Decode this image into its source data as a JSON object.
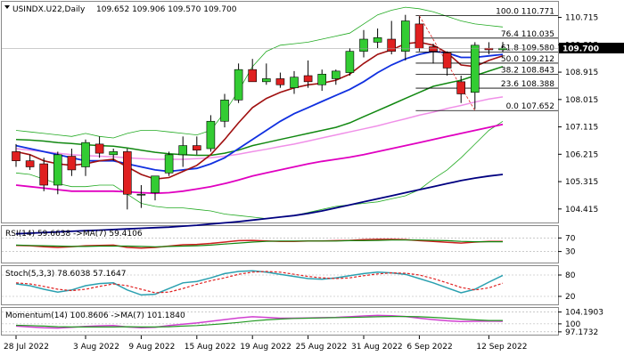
{
  "header": {
    "symbol": "USINDX.U22,Daily",
    "ohlc": "109.652 109.906 109.570 109.700"
  },
  "price_tag": "109.700",
  "chart_data": [
    {
      "type": "candlestick",
      "name": "main",
      "ylim": [
        104.0,
        111.2
      ],
      "y_ticks": [
        "110.715",
        "109.815",
        "108.915",
        "108.015",
        "107.115",
        "106.215",
        "105.315",
        "104.415"
      ],
      "x_ticks": [
        "28 Jul 2022",
        "3 Aug 2022",
        "9 Aug 2022",
        "15 Aug 2022",
        "19 Aug 2022",
        "25 Aug 2022",
        "31 Aug 2022",
        "6 Sep 2022",
        "12 Sep 2022"
      ],
      "x_tick_index": [
        0,
        5,
        9,
        13,
        17,
        21,
        25,
        29,
        34
      ],
      "candles": [
        {
          "o": 106.3,
          "h": 106.55,
          "l": 105.8,
          "c": 106.0
        },
        {
          "o": 106.0,
          "h": 106.2,
          "l": 105.7,
          "c": 105.8
        },
        {
          "o": 105.9,
          "h": 106.1,
          "l": 105.0,
          "c": 105.2
        },
        {
          "o": 105.2,
          "h": 106.3,
          "l": 104.9,
          "c": 106.2
        },
        {
          "o": 106.15,
          "h": 106.4,
          "l": 105.5,
          "c": 105.7
        },
        {
          "o": 105.8,
          "h": 106.7,
          "l": 105.5,
          "c": 106.6
        },
        {
          "o": 106.55,
          "h": 106.8,
          "l": 106.1,
          "c": 106.25
        },
        {
          "o": 106.2,
          "h": 106.4,
          "l": 106.0,
          "c": 106.3
        },
        {
          "o": 106.3,
          "h": 106.4,
          "l": 104.4,
          "c": 104.9
        },
        {
          "o": 104.9,
          "h": 105.2,
          "l": 104.45,
          "c": 104.9
        },
        {
          "o": 104.95,
          "h": 105.5,
          "l": 104.7,
          "c": 105.5
        },
        {
          "o": 105.6,
          "h": 106.3,
          "l": 105.5,
          "c": 106.2
        },
        {
          "o": 106.2,
          "h": 106.8,
          "l": 105.8,
          "c": 106.5
        },
        {
          "o": 106.5,
          "h": 106.8,
          "l": 106.2,
          "c": 106.35
        },
        {
          "o": 106.4,
          "h": 107.5,
          "l": 106.3,
          "c": 107.3
        },
        {
          "o": 107.3,
          "h": 108.2,
          "l": 107.1,
          "c": 108.0
        },
        {
          "o": 108.0,
          "h": 109.2,
          "l": 107.9,
          "c": 109.0
        },
        {
          "o": 109.0,
          "h": 109.35,
          "l": 108.6,
          "c": 108.6
        },
        {
          "o": 108.6,
          "h": 109.2,
          "l": 108.5,
          "c": 108.7
        },
        {
          "o": 108.7,
          "h": 108.9,
          "l": 108.4,
          "c": 108.5
        },
        {
          "o": 108.4,
          "h": 108.95,
          "l": 108.2,
          "c": 108.75
        },
        {
          "o": 108.8,
          "h": 109.3,
          "l": 108.4,
          "c": 108.6
        },
        {
          "o": 108.5,
          "h": 109.0,
          "l": 108.3,
          "c": 108.85
        },
        {
          "o": 108.7,
          "h": 109.0,
          "l": 108.5,
          "c": 108.95
        },
        {
          "o": 108.9,
          "h": 109.7,
          "l": 108.8,
          "c": 109.6
        },
        {
          "o": 109.6,
          "h": 110.3,
          "l": 109.4,
          "c": 110.0
        },
        {
          "o": 109.9,
          "h": 110.35,
          "l": 109.7,
          "c": 110.05
        },
        {
          "o": 110.0,
          "h": 110.6,
          "l": 109.5,
          "c": 109.6
        },
        {
          "o": 109.6,
          "h": 110.8,
          "l": 109.3,
          "c": 110.6
        },
        {
          "o": 110.5,
          "h": 110.75,
          "l": 109.6,
          "c": 109.7
        },
        {
          "o": 109.75,
          "h": 109.85,
          "l": 109.2,
          "c": 109.6
        },
        {
          "o": 109.55,
          "h": 109.6,
          "l": 108.8,
          "c": 109.05
        },
        {
          "o": 108.6,
          "h": 108.8,
          "l": 107.9,
          "c": 108.2
        },
        {
          "o": 108.25,
          "h": 109.9,
          "l": 107.7,
          "c": 109.8
        },
        {
          "o": 109.7,
          "h": 109.9,
          "l": 109.5,
          "c": 109.65
        },
        {
          "o": 109.65,
          "h": 109.906,
          "l": 109.57,
          "c": 109.7
        }
      ],
      "bollinger_upper": [
        107.0,
        106.95,
        106.9,
        106.85,
        106.8,
        106.9,
        106.8,
        106.75,
        106.9,
        107.0,
        107.0,
        106.95,
        106.9,
        106.85,
        107.0,
        107.6,
        108.3,
        109.1,
        109.6,
        109.8,
        109.85,
        109.9,
        110.0,
        110.1,
        110.2,
        110.5,
        110.8,
        110.95,
        111.05,
        111.0,
        110.9,
        110.75,
        110.6,
        110.5,
        110.45,
        110.4
      ],
      "bollinger_lower": [
        105.6,
        105.55,
        105.4,
        105.25,
        105.15,
        105.15,
        105.2,
        105.2,
        104.9,
        104.6,
        104.5,
        104.45,
        104.45,
        104.4,
        104.35,
        104.25,
        104.2,
        104.15,
        104.1,
        104.15,
        104.2,
        104.3,
        104.4,
        104.5,
        104.55,
        104.6,
        104.65,
        104.75,
        104.85,
        105.05,
        105.4,
        105.7,
        106.1,
        106.55,
        107.0,
        107.3
      ],
      "ma_blue": [
        106.5,
        106.4,
        106.3,
        106.2,
        106.1,
        106.0,
        106.0,
        106.0,
        105.9,
        105.8,
        105.7,
        105.65,
        105.7,
        105.75,
        105.9,
        106.1,
        106.4,
        106.7,
        107.0,
        107.3,
        107.55,
        107.75,
        107.95,
        108.15,
        108.35,
        108.6,
        108.9,
        109.15,
        109.35,
        109.5,
        109.6,
        109.55,
        109.4,
        109.4,
        109.45,
        109.5
      ],
      "ma_red": [
        106.3,
        106.2,
        106.0,
        105.9,
        105.85,
        105.9,
        106.0,
        106.05,
        105.8,
        105.55,
        105.4,
        105.45,
        105.65,
        105.85,
        106.2,
        106.7,
        107.25,
        107.75,
        108.05,
        108.25,
        108.4,
        108.5,
        108.55,
        108.65,
        108.85,
        109.2,
        109.5,
        109.65,
        109.85,
        109.9,
        109.8,
        109.55,
        109.15,
        109.1,
        109.3,
        109.45
      ],
      "ma_green": [
        106.7,
        106.68,
        106.65,
        106.6,
        106.57,
        106.53,
        106.5,
        106.48,
        106.42,
        106.35,
        106.28,
        106.23,
        106.2,
        106.18,
        106.18,
        106.25,
        106.35,
        106.5,
        106.6,
        106.7,
        106.8,
        106.9,
        107.0,
        107.1,
        107.25,
        107.45,
        107.65,
        107.85,
        108.05,
        108.25,
        108.45,
        108.55,
        108.65,
        108.8,
        108.95,
        109.1
      ],
      "ma_magenta": [
        105.2,
        105.15,
        105.1,
        105.05,
        105.0,
        105.0,
        105.0,
        105.0,
        104.98,
        104.95,
        104.93,
        104.95,
        105.0,
        105.07,
        105.15,
        105.25,
        105.37,
        105.5,
        105.6,
        105.7,
        105.8,
        105.9,
        105.98,
        106.05,
        106.12,
        106.2,
        106.3,
        106.4,
        106.5,
        106.6,
        106.7,
        106.8,
        106.9,
        107.0,
        107.1,
        107.2
      ],
      "ma_lightpink": [
        106.4,
        106.35,
        106.3,
        106.25,
        106.2,
        106.17,
        106.15,
        106.13,
        106.1,
        106.07,
        106.05,
        106.05,
        106.05,
        106.07,
        106.1,
        106.15,
        106.22,
        106.3,
        106.38,
        106.47,
        106.55,
        106.65,
        106.75,
        106.85,
        106.95,
        107.05,
        107.15,
        107.27,
        107.38,
        107.5,
        107.6,
        107.72,
        107.82,
        107.93,
        108.03,
        108.1
      ],
      "ma_navy": [
        103.6,
        103.62,
        103.64,
        103.66,
        103.68,
        103.7,
        103.72,
        103.74,
        103.76,
        103.78,
        103.8,
        103.82,
        103.85,
        103.88,
        103.92,
        103.96,
        104.0,
        104.05,
        104.1,
        104.15,
        104.2,
        104.27,
        104.35,
        104.45,
        104.55,
        104.65,
        104.75,
        104.85,
        104.95,
        105.05,
        105.15,
        105.25,
        105.35,
        105.43,
        105.5,
        105.55
      ],
      "fibonacci": {
        "levels": [
          {
            "label": "100.0 110.771",
            "value": 110.771
          },
          {
            "label": "76.4 110.035",
            "value": 110.035
          },
          {
            "label": "61.8 109.580",
            "value": 109.58
          },
          {
            "label": "50.0 109.212",
            "value": 109.212
          },
          {
            "label": "38.2 108.843",
            "value": 108.843
          },
          {
            "label": "23.6 108.388",
            "value": 108.388
          },
          {
            "label": "0.0 107.652",
            "value": 107.652
          }
        ],
        "start_index": 29,
        "high": 110.771,
        "low": 107.652,
        "low_index": 33
      }
    },
    {
      "type": "line",
      "name": "rsi",
      "title": "RSI(14) 59.6638 ->MA(7) 59.4106",
      "ylim": [
        0,
        100
      ],
      "y_ticks": [
        70,
        30
      ],
      "series": [
        {
          "name": "RSI(14)",
          "values": [
            48,
            47,
            44,
            42,
            44,
            47,
            48,
            49,
            42,
            40,
            42,
            46,
            50,
            51,
            54,
            58,
            62,
            63,
            61,
            60,
            60,
            61,
            61,
            62,
            63,
            65,
            66,
            66,
            65,
            62,
            60,
            57,
            55,
            58,
            60,
            60
          ]
        },
        {
          "name": "MA(7)",
          "values": [
            49,
            48,
            47,
            46,
            45,
            45,
            46,
            46,
            46,
            45,
            44,
            45,
            46,
            47,
            49,
            52,
            55,
            58,
            60,
            61,
            61,
            61,
            61,
            61,
            62,
            62,
            63,
            64,
            64,
            64,
            63,
            62,
            60,
            59,
            59,
            59
          ]
        }
      ]
    },
    {
      "type": "line",
      "name": "stochastic",
      "title": "Stoch(5,3,3) 78.6038 57.1647",
      "ylim": [
        0,
        100
      ],
      "y_ticks": [
        80,
        20
      ],
      "series": [
        {
          "name": "%K",
          "values": [
            55,
            50,
            40,
            32,
            38,
            50,
            56,
            58,
            38,
            24,
            26,
            42,
            58,
            62,
            72,
            84,
            90,
            92,
            88,
            82,
            76,
            70,
            68,
            72,
            78,
            84,
            88,
            86,
            82,
            70,
            58,
            44,
            30,
            40,
            60,
            79
          ]
        },
        {
          "name": "%D",
          "values": [
            58,
            55,
            48,
            40,
            36,
            40,
            48,
            55,
            50,
            40,
            30,
            32,
            42,
            54,
            64,
            72,
            82,
            88,
            90,
            88,
            82,
            76,
            72,
            70,
            72,
            78,
            83,
            86,
            85,
            80,
            70,
            58,
            45,
            38,
            44,
            57
          ]
        }
      ]
    },
    {
      "type": "line",
      "name": "momentum",
      "title": "Momentum(14) 100.8606 ->MA(7) 101.1840",
      "ylim": [
        96.5,
        105.0
      ],
      "y_ticks": [
        "104.1903",
        "100",
        "97.1732"
      ],
      "series": [
        {
          "name": "Momentum(14)",
          "values": [
            99.2,
            98.9,
            98.6,
            98.5,
            98.8,
            99.1,
            99.3,
            99.4,
            98.9,
            98.6,
            98.8,
            99.4,
            99.9,
            100.3,
            100.9,
            101.5,
            102.1,
            102.5,
            102.3,
            102.0,
            102.0,
            102.1,
            102.2,
            102.3,
            102.5,
            102.8,
            103.0,
            102.9,
            102.6,
            102.0,
            101.5,
            101.1,
            100.8,
            100.9,
            101.0,
            100.9
          ]
        },
        {
          "name": "MA(7)",
          "values": [
            99.5,
            99.4,
            99.2,
            99.0,
            98.9,
            98.9,
            98.9,
            98.9,
            99.0,
            98.9,
            98.9,
            99.0,
            99.2,
            99.4,
            99.7,
            100.1,
            100.5,
            101.0,
            101.4,
            101.7,
            101.9,
            102.0,
            102.1,
            102.2,
            102.3,
            102.4,
            102.5,
            102.6,
            102.6,
            102.5,
            102.3,
            102.0,
            101.7,
            101.4,
            101.2,
            101.2
          ]
        }
      ]
    }
  ],
  "colors": {
    "bull": "#33cc33",
    "bear": "#e02020",
    "boll": "#22aa22",
    "blue": "#1030e0",
    "red": "#a01010",
    "green": "#118811",
    "magenta": "#e000c0",
    "pink": "#f090e8",
    "navy": "#000080",
    "ind_red": "#cc2020",
    "ind_green": "#118811",
    "stoch_teal": "#2aa0b0",
    "stoch_red": "#e02020",
    "mom_magenta": "#d040d0",
    "mom_green": "#229922"
  }
}
